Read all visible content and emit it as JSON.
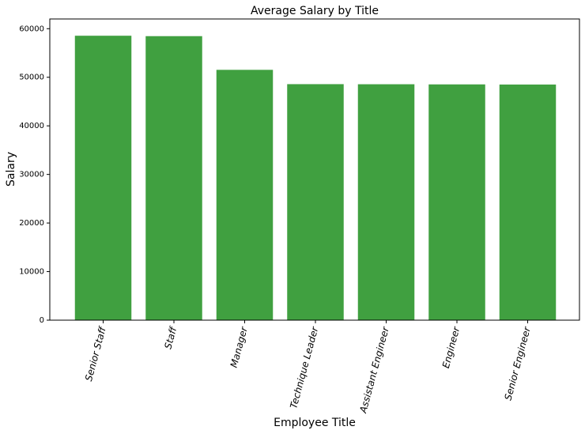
{
  "chart_data": {
    "type": "bar",
    "title": "Average Salary by Title",
    "xlabel": "Employee Title",
    "ylabel": "Salary",
    "categories": [
      "Senior Staff",
      "Staff",
      "Manager",
      "Technique Leader",
      "Assistant Engineer",
      "Engineer",
      "Senior Engineer"
    ],
    "values": [
      58550,
      58465,
      51531,
      48583,
      48564,
      48535,
      48507
    ],
    "ylim": [
      0,
      62000
    ],
    "yticks": [
      0,
      10000,
      20000,
      30000,
      40000,
      50000,
      60000
    ],
    "ytick_labels": [
      "0",
      "10000",
      "20000",
      "30000",
      "40000",
      "50000",
      "60000"
    ],
    "bar_color": "#40a040",
    "grid": false,
    "xtick_rotation": "75 degrees"
  }
}
